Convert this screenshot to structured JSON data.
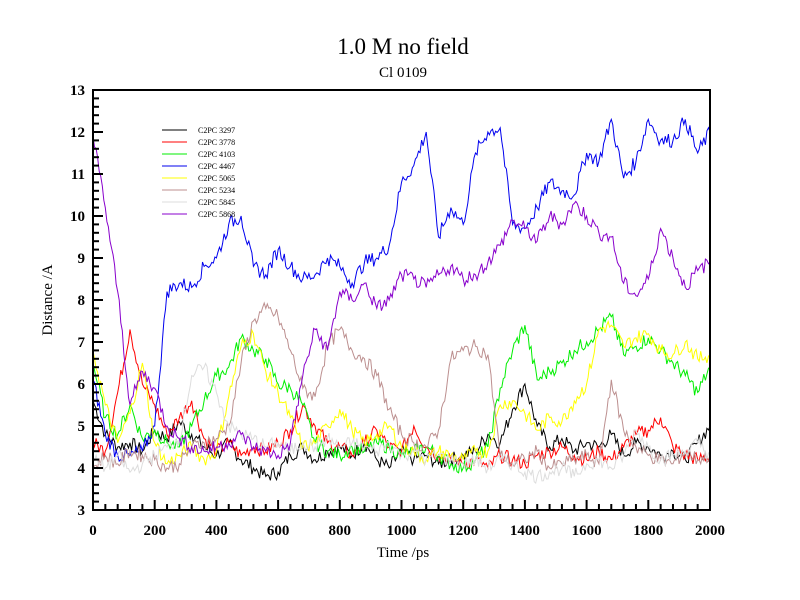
{
  "chart_data": {
    "type": "line",
    "title": "1.0 M no field",
    "subtitle": "Cl 0109",
    "xlabel": "Time /ps",
    "ylabel": "Distance /A",
    "xlim": [
      0,
      2000
    ],
    "ylim": [
      3,
      13
    ],
    "xticks": [
      "0",
      "200",
      "400",
      "600",
      "800",
      "1000",
      "1200",
      "1400",
      "1600",
      "1800",
      "2000"
    ],
    "yticks": [
      "3",
      "4",
      "5",
      "6",
      "7",
      "8",
      "9",
      "10",
      "11",
      "12",
      "13"
    ],
    "grid": false,
    "legend_position": "top-left",
    "x": [
      0,
      40,
      80,
      120,
      160,
      200,
      240,
      280,
      320,
      360,
      400,
      440,
      480,
      520,
      560,
      600,
      640,
      680,
      720,
      760,
      800,
      840,
      880,
      920,
      960,
      1000,
      1040,
      1080,
      1120,
      1160,
      1200,
      1240,
      1280,
      1320,
      1360,
      1400,
      1440,
      1480,
      1520,
      1560,
      1600,
      1640,
      1680,
      1720,
      1760,
      1800,
      1840,
      1880,
      1920,
      1960,
      2000
    ],
    "series": [
      {
        "name": "C2PC 3297",
        "color": "#000000",
        "values": [
          5.6,
          4.8,
          4.5,
          4.6,
          4.4,
          4.9,
          4.7,
          5.1,
          4.8,
          4.5,
          4.3,
          4.6,
          4.2,
          4.0,
          3.8,
          3.9,
          4.3,
          4.5,
          4.2,
          4.4,
          4.5,
          4.3,
          4.6,
          4.2,
          4.0,
          4.4,
          4.2,
          4.3,
          4.1,
          4.2,
          4.3,
          4.4,
          4.8,
          4.6,
          5.4,
          6.0,
          5.0,
          4.5,
          4.7,
          4.4,
          4.6,
          4.5,
          4.8,
          4.3,
          4.6,
          4.5,
          4.3,
          4.4,
          4.2,
          4.6,
          5.0
        ]
      },
      {
        "name": "C2PC 3778",
        "color": "#ff0000",
        "values": [
          4.6,
          4.4,
          5.8,
          7.3,
          6.0,
          5.5,
          4.8,
          5.2,
          5.6,
          4.7,
          4.4,
          4.6,
          4.3,
          4.5,
          4.4,
          4.6,
          4.9,
          5.5,
          5.0,
          4.6,
          4.5,
          4.3,
          4.6,
          4.9,
          4.5,
          4.4,
          5.0,
          4.5,
          4.3,
          4.2,
          4.1,
          4.2,
          4.0,
          4.3,
          4.2,
          4.1,
          4.3,
          4.4,
          4.5,
          4.3,
          4.2,
          4.4,
          4.2,
          4.5,
          4.8,
          4.9,
          5.2,
          4.5,
          4.3,
          4.2,
          4.3
        ]
      },
      {
        "name": "C2PC 4103",
        "color": "#00ee00",
        "values": [
          6.5,
          5.2,
          4.8,
          5.5,
          4.7,
          4.9,
          4.6,
          4.5,
          5.0,
          5.6,
          6.2,
          6.4,
          7.1,
          6.8,
          6.6,
          6.0,
          5.9,
          5.5,
          4.6,
          4.4,
          4.3,
          4.5,
          4.4,
          4.6,
          4.5,
          4.3,
          4.4,
          4.5,
          4.3,
          4.1,
          4.0,
          4.2,
          4.5,
          5.9,
          6.8,
          7.4,
          6.1,
          6.3,
          6.5,
          6.8,
          7.0,
          7.3,
          7.6,
          6.7,
          6.9,
          7.1,
          6.8,
          6.5,
          6.2,
          5.8,
          6.4
        ]
      },
      {
        "name": "C2PC 4467",
        "color": "#0000ee",
        "values": [
          6.1,
          4.8,
          4.3,
          4.3,
          4.4,
          5.0,
          8.2,
          8.4,
          8.3,
          8.8,
          9.0,
          9.8,
          10.0,
          8.8,
          8.6,
          9.2,
          8.8,
          8.5,
          8.6,
          9.0,
          8.8,
          8.4,
          8.9,
          9.0,
          9.3,
          10.8,
          11.2,
          12.0,
          9.5,
          10.2,
          9.8,
          11.5,
          12.0,
          12.1,
          9.8,
          9.7,
          10.2,
          10.8,
          10.6,
          10.5,
          11.5,
          11.3,
          12.3,
          10.9,
          11.3,
          12.3,
          11.8,
          11.8,
          12.3,
          11.5,
          12.0
        ]
      },
      {
        "name": "C2PC 5065",
        "color": "#ffff00",
        "values": [
          6.8,
          5.5,
          4.6,
          5.3,
          6.5,
          4.6,
          4.1,
          4.3,
          4.5,
          4.2,
          4.4,
          5.7,
          6.9,
          7.2,
          6.3,
          5.8,
          5.2,
          4.5,
          4.6,
          5.0,
          5.4,
          4.9,
          4.6,
          4.8,
          5.0,
          4.5,
          4.4,
          4.2,
          4.4,
          4.3,
          4.2,
          4.4,
          4.4,
          5.5,
          5.6,
          5.3,
          4.9,
          5.2,
          5.1,
          5.6,
          6.0,
          7.3,
          7.4,
          6.9,
          7.1,
          7.2,
          6.8,
          6.7,
          7.0,
          6.6,
          6.7
        ]
      },
      {
        "name": "C2PC 5234",
        "color": "#bc8f8f",
        "values": [
          4.0,
          4.3,
          4.1,
          4.4,
          4.3,
          4.2,
          4.0,
          4.1,
          4.5,
          4.6,
          4.7,
          5.0,
          6.5,
          7.5,
          7.8,
          7.6,
          6.8,
          5.9,
          5.7,
          6.9,
          7.3,
          6.8,
          6.6,
          6.2,
          5.4,
          4.8,
          4.6,
          4.5,
          4.9,
          6.6,
          6.8,
          6.9,
          6.7,
          4.3,
          4.1,
          4.2,
          4.4,
          4.0,
          4.1,
          4.2,
          4.3,
          4.1,
          6.1,
          4.9,
          4.5,
          4.3,
          4.2,
          4.1,
          4.4,
          4.2,
          4.3
        ]
      },
      {
        "name": "C2PC 5845",
        "color": "#dddddd",
        "values": [
          4.2,
          4.0,
          4.3,
          3.9,
          4.1,
          4.3,
          4.5,
          4.7,
          6.2,
          6.4,
          5.8,
          5.0,
          4.8,
          4.7,
          4.5,
          4.6,
          4.4,
          4.6,
          4.5,
          4.7,
          4.5,
          4.6,
          4.5,
          4.4,
          4.6,
          4.3,
          4.4,
          4.2,
          4.3,
          4.2,
          4.1,
          4.2,
          4.0,
          4.2,
          4.1,
          3.9,
          3.8,
          3.9,
          4.0,
          3.8,
          4.1,
          4.2,
          4.0,
          4.3,
          4.9,
          4.5,
          4.2,
          4.3,
          4.4,
          4.6,
          4.3
        ]
      },
      {
        "name": "C2PC 5868",
        "color": "#8800cc",
        "values": [
          11.9,
          10.2,
          8.2,
          5.5,
          6.3,
          5.9,
          5.0,
          4.7,
          4.5,
          4.4,
          4.5,
          4.6,
          4.8,
          4.5,
          4.4,
          4.3,
          4.6,
          6.2,
          7.3,
          6.8,
          8.2,
          8.0,
          8.4,
          7.8,
          8.0,
          8.6,
          8.5,
          8.3,
          8.6,
          8.8,
          8.5,
          8.6,
          8.9,
          9.3,
          9.9,
          9.7,
          9.4,
          10.0,
          9.8,
          10.3,
          10.0,
          9.6,
          9.5,
          8.4,
          8.1,
          8.5,
          9.7,
          9.0,
          8.3,
          8.7,
          8.9
        ]
      }
    ]
  }
}
